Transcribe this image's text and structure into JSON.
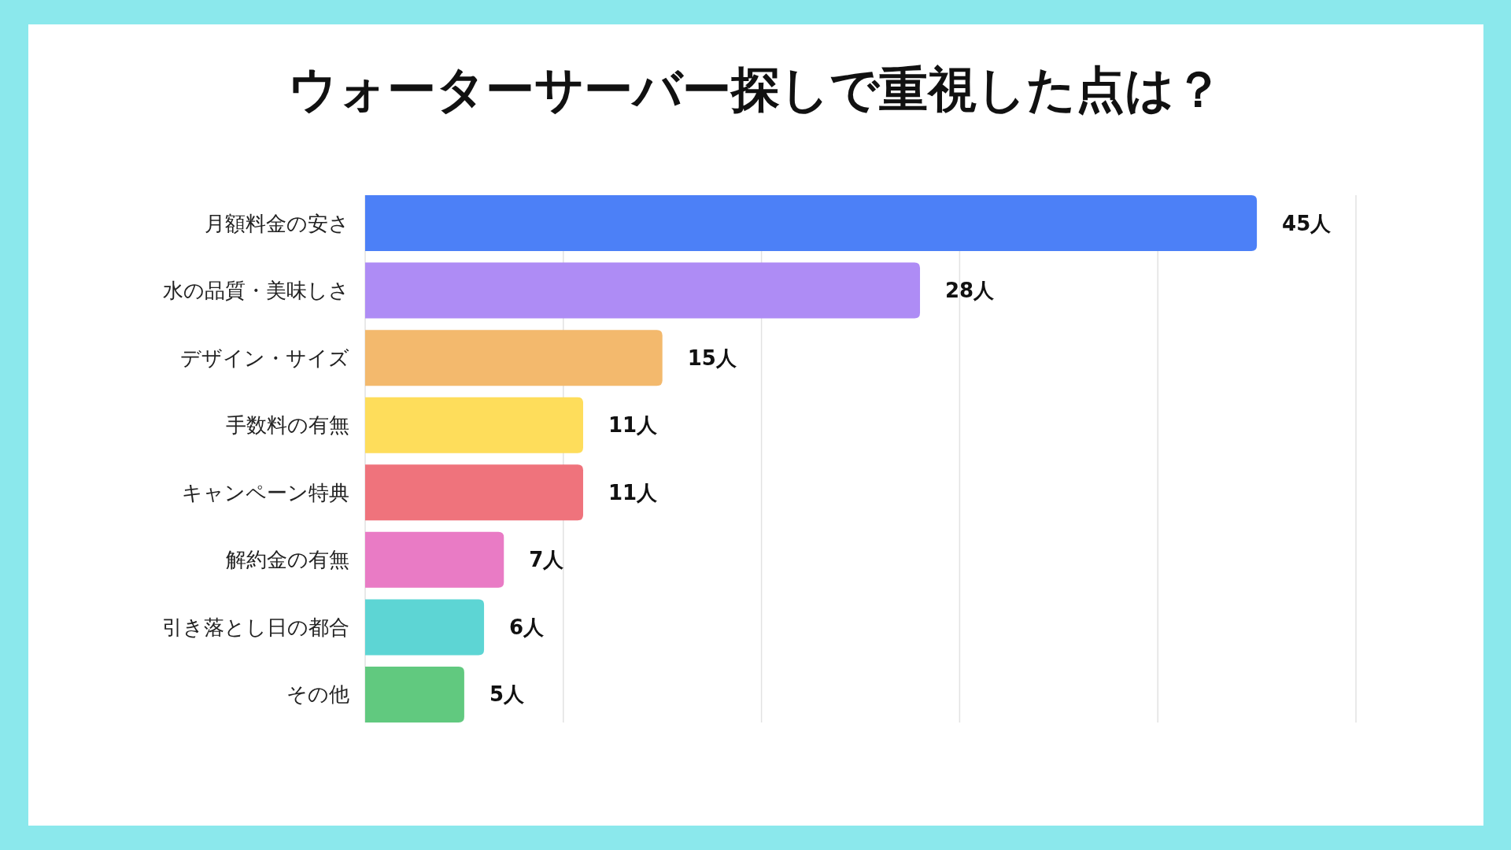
{
  "chart_data": {
    "type": "bar",
    "orientation": "horizontal",
    "title": "ウォーターサーバー探しで重視した点は？",
    "categories": [
      "月額料金の安さ",
      "水の品質・美味しさ",
      "デザイン・サイズ",
      "手数料の有無",
      "キャンペーン特典",
      "解約金の有無",
      "引き落とし日の都合",
      "その他"
    ],
    "values": [
      45,
      28,
      15,
      11,
      11,
      7,
      6,
      5
    ],
    "colors": [
      "#4c80f7",
      "#ae8cf5",
      "#f3b96d",
      "#fedd5b",
      "#ef737c",
      "#e97bc5",
      "#5dd5d4",
      "#61c97f"
    ],
    "value_labels": [
      "45人",
      "28人",
      "15人",
      "11人",
      "11人",
      "7人",
      "6人",
      "5人"
    ],
    "xlim": [
      0,
      50
    ],
    "xticks": [
      {
        "value": 0,
        "label": null
      },
      {
        "value": 10,
        "label": null
      },
      {
        "value": 20,
        "label": null
      },
      {
        "value": 30,
        "label": null
      },
      {
        "value": 40,
        "label": null
      },
      {
        "value": 50,
        "label": null
      }
    ],
    "grid": "x"
  }
}
